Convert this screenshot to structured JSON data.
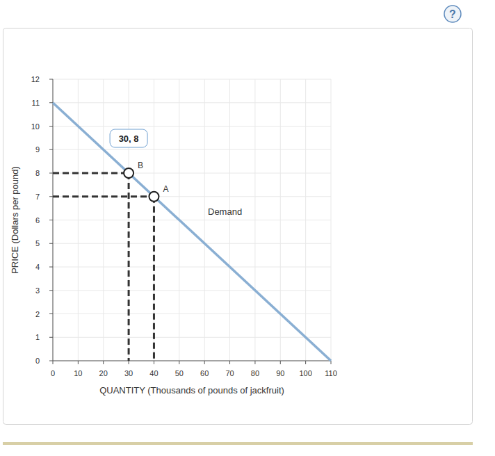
{
  "chart_data": {
    "type": "line",
    "x_label": "QUANTITY (Thousands of pounds of jackfruit)",
    "y_label": "PRICE (Dollars per pound)",
    "series": [
      {
        "name": "Demand",
        "color": "#8aafd3",
        "x": [
          0,
          110
        ],
        "values": [
          11,
          0
        ]
      }
    ],
    "points": [
      {
        "name": "B",
        "x": 30,
        "y": 8,
        "annotation": "30, 8"
      },
      {
        "name": "A",
        "x": 40,
        "y": 7
      }
    ],
    "xlim": [
      0,
      110
    ],
    "ylim": [
      0,
      12
    ],
    "xticks": [
      0,
      10,
      20,
      30,
      40,
      50,
      60,
      70,
      80,
      90,
      100,
      110
    ],
    "yticks": [
      0,
      1,
      2,
      3,
      4,
      5,
      6,
      7,
      8,
      9,
      10,
      11,
      12
    ],
    "grid": true
  },
  "ui": {
    "help_label": "?"
  }
}
